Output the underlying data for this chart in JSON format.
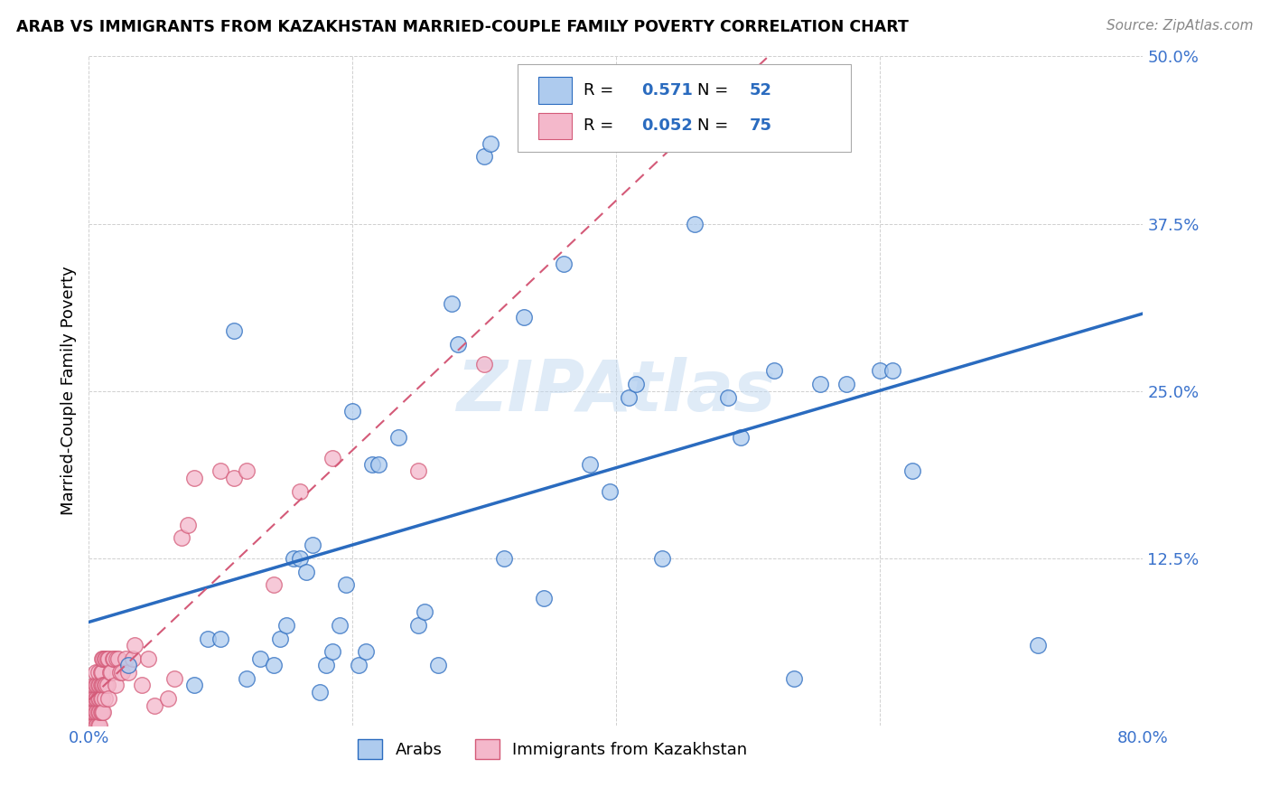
{
  "title": "ARAB VS IMMIGRANTS FROM KAZAKHSTAN MARRIED-COUPLE FAMILY POVERTY CORRELATION CHART",
  "source": "Source: ZipAtlas.com",
  "ylabel": "Married-Couple Family Poverty",
  "arab_R": 0.571,
  "arab_N": 52,
  "immig_R": 0.052,
  "immig_N": 75,
  "xlim": [
    0.0,
    0.8
  ],
  "ylim": [
    0.0,
    0.5
  ],
  "ytick_positions": [
    0.0,
    0.125,
    0.25,
    0.375,
    0.5
  ],
  "ytick_labels": [
    "",
    "12.5%",
    "25.0%",
    "37.5%",
    "50.0%"
  ],
  "arab_color": "#aecbee",
  "arab_edge_color": "#2a6bbf",
  "arab_line_color": "#2a6bbf",
  "immig_color": "#f4b8cb",
  "immig_edge_color": "#d45a78",
  "immig_line_color": "#d45a78",
  "watermark": "ZIPAtlas",
  "arab_x": [
    0.03,
    0.08,
    0.09,
    0.1,
    0.11,
    0.12,
    0.13,
    0.14,
    0.145,
    0.15,
    0.155,
    0.16,
    0.165,
    0.17,
    0.175,
    0.18,
    0.185,
    0.19,
    0.195,
    0.2,
    0.205,
    0.21,
    0.215,
    0.22,
    0.235,
    0.25,
    0.255,
    0.265,
    0.275,
    0.28,
    0.3,
    0.305,
    0.315,
    0.33,
    0.345,
    0.36,
    0.38,
    0.395,
    0.41,
    0.415,
    0.435,
    0.46,
    0.485,
    0.495,
    0.52,
    0.535,
    0.555,
    0.575,
    0.6,
    0.61,
    0.625,
    0.72
  ],
  "arab_y": [
    0.045,
    0.03,
    0.065,
    0.065,
    0.295,
    0.035,
    0.05,
    0.045,
    0.065,
    0.075,
    0.125,
    0.125,
    0.115,
    0.135,
    0.025,
    0.045,
    0.055,
    0.075,
    0.105,
    0.235,
    0.045,
    0.055,
    0.195,
    0.195,
    0.215,
    0.075,
    0.085,
    0.045,
    0.315,
    0.285,
    0.425,
    0.435,
    0.125,
    0.305,
    0.095,
    0.345,
    0.195,
    0.175,
    0.245,
    0.255,
    0.125,
    0.375,
    0.245,
    0.215,
    0.265,
    0.035,
    0.255,
    0.255,
    0.265,
    0.265,
    0.19,
    0.06
  ],
  "immig_x": [
    0.003,
    0.003,
    0.003,
    0.004,
    0.004,
    0.004,
    0.004,
    0.005,
    0.005,
    0.005,
    0.005,
    0.005,
    0.006,
    0.006,
    0.006,
    0.006,
    0.007,
    0.007,
    0.007,
    0.007,
    0.007,
    0.008,
    0.008,
    0.008,
    0.008,
    0.009,
    0.009,
    0.009,
    0.009,
    0.01,
    0.01,
    0.01,
    0.01,
    0.01,
    0.011,
    0.011,
    0.011,
    0.012,
    0.012,
    0.012,
    0.013,
    0.013,
    0.014,
    0.014,
    0.015,
    0.015,
    0.016,
    0.017,
    0.018,
    0.019,
    0.02,
    0.021,
    0.022,
    0.024,
    0.025,
    0.028,
    0.03,
    0.033,
    0.035,
    0.04,
    0.045,
    0.05,
    0.06,
    0.065,
    0.07,
    0.075,
    0.08,
    0.1,
    0.11,
    0.12,
    0.14,
    0.16,
    0.185,
    0.25,
    0.3
  ],
  "immig_y": [
    0.0,
    0.01,
    0.02,
    0.0,
    0.01,
    0.02,
    0.03,
    0.0,
    0.01,
    0.02,
    0.03,
    0.04,
    0.0,
    0.01,
    0.02,
    0.03,
    0.0,
    0.01,
    0.02,
    0.03,
    0.04,
    0.0,
    0.01,
    0.02,
    0.03,
    0.01,
    0.02,
    0.03,
    0.04,
    0.01,
    0.02,
    0.03,
    0.04,
    0.05,
    0.01,
    0.03,
    0.05,
    0.02,
    0.03,
    0.05,
    0.03,
    0.05,
    0.03,
    0.05,
    0.02,
    0.05,
    0.04,
    0.04,
    0.05,
    0.05,
    0.03,
    0.05,
    0.05,
    0.04,
    0.04,
    0.05,
    0.04,
    0.05,
    0.06,
    0.03,
    0.05,
    0.015,
    0.02,
    0.035,
    0.14,
    0.15,
    0.185,
    0.19,
    0.185,
    0.19,
    0.105,
    0.175,
    0.2,
    0.19,
    0.27
  ]
}
